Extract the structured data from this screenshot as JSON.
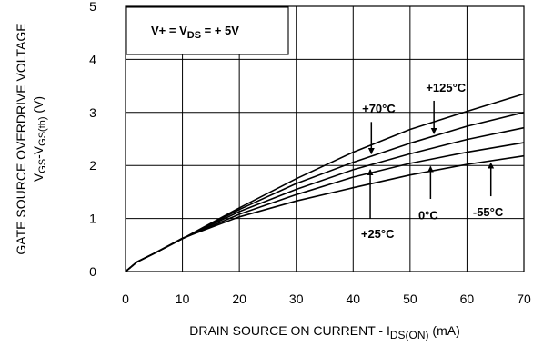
{
  "chart_data": {
    "type": "line",
    "title": "",
    "xlabel": {
      "main": "DRAIN SOURCE ON CURRENT - I",
      "sub": "DS(ON)",
      "unit": " (mA)"
    },
    "ylabel": {
      "line1": "GATE SOURCE OVERDRIVE VOLTAGE",
      "line2_a": "V",
      "line2_a_sub": "GS",
      "line2_b": "-V",
      "line2_b_sub": "GS(th)",
      "line2_unit": " (V)"
    },
    "xlim": [
      0,
      70
    ],
    "ylim": [
      0,
      5
    ],
    "x_ticks": [
      "0",
      "10",
      "20",
      "30",
      "40",
      "50",
      "60",
      "70"
    ],
    "y_ticks": [
      "0",
      "1",
      "2",
      "3",
      "4",
      "5"
    ],
    "grid": true,
    "condition": {
      "prefix": "V+ = V",
      "sub": "DS",
      "suffix": " = + 5V"
    },
    "series": [
      {
        "name": "+125°C",
        "x": [
          0,
          2,
          5,
          10,
          20,
          30,
          40,
          50,
          60,
          70
        ],
        "y": [
          0,
          0.18,
          0.34,
          0.62,
          1.2,
          1.75,
          2.25,
          2.68,
          3.02,
          3.35
        ]
      },
      {
        "name": "+70°C",
        "x": [
          0,
          2,
          5,
          10,
          20,
          30,
          40,
          50,
          60,
          70
        ],
        "y": [
          0,
          0.18,
          0.34,
          0.62,
          1.17,
          1.66,
          2.06,
          2.42,
          2.74,
          3.0
        ]
      },
      {
        "name": "+25°C",
        "x": [
          0,
          2,
          5,
          10,
          20,
          30,
          40,
          50,
          60,
          70
        ],
        "y": [
          0,
          0.18,
          0.34,
          0.62,
          1.13,
          1.55,
          1.92,
          2.22,
          2.49,
          2.71
        ]
      },
      {
        "name": "0°C",
        "x": [
          0,
          2,
          5,
          10,
          20,
          30,
          40,
          50,
          60,
          70
        ],
        "y": [
          0,
          0.18,
          0.34,
          0.62,
          1.08,
          1.45,
          1.78,
          2.04,
          2.25,
          2.43
        ]
      },
      {
        "name": "-55°C",
        "x": [
          0,
          2,
          5,
          10,
          20,
          30,
          40,
          50,
          60,
          70
        ],
        "y": [
          0,
          0.18,
          0.34,
          0.63,
          1.03,
          1.33,
          1.58,
          1.82,
          2.02,
          2.18
        ]
      }
    ],
    "annotations": [
      {
        "text": "+125°C",
        "label_x": 56.3,
        "label_y": 3.48,
        "tip_x": 54.2,
        "tip_y": 2.6,
        "tail_x": 54.2,
        "tail_y": 3.22
      },
      {
        "text": "+70°C",
        "label_x": 44.5,
        "label_y": 3.08,
        "tip_x": 43.2,
        "tip_y": 2.22,
        "tail_x": 43.2,
        "tail_y": 2.82
      },
      {
        "text": "+25°C",
        "label_x": 44.3,
        "label_y": 0.72,
        "tip_x": 43.0,
        "tip_y": 1.92,
        "tail_x": 43.0,
        "tail_y": 1.0
      },
      {
        "text": "0°C",
        "label_x": 53.2,
        "label_y": 1.07,
        "tip_x": 53.6,
        "tip_y": 1.98,
        "tail_x": 53.6,
        "tail_y": 1.37
      },
      {
        "text": "-55°C",
        "label_x": 63.7,
        "label_y": 1.13,
        "tip_x": 64.2,
        "tip_y": 2.05,
        "tail_x": 64.2,
        "tail_y": 1.42
      }
    ],
    "colors": {
      "line": "#000000",
      "grid": "#000000",
      "background": "#ffffff"
    }
  }
}
